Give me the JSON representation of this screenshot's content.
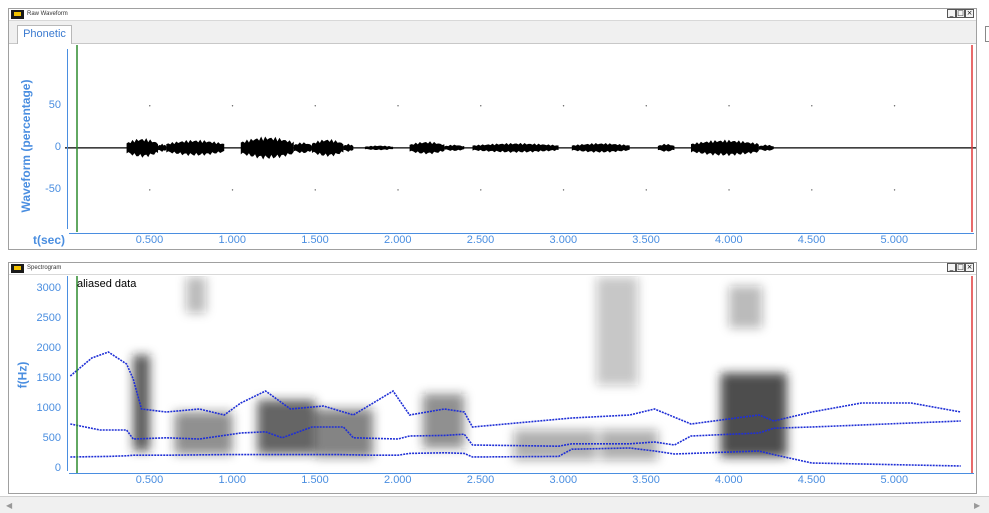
{
  "waveform": {
    "window_title": "Raw Waveform",
    "tab_label": "Phonetic",
    "y_axis_title": "Waveform (percentage)",
    "y_ticks": [
      "50",
      "0",
      "-50"
    ],
    "x_unit_label": "t(sec)",
    "x_ticks": [
      "0.500",
      "1.000",
      "1.500",
      "2.000",
      "2.500",
      "3.000",
      "3.500",
      "4.000",
      "4.500",
      "5.000"
    ],
    "segments": [
      {
        "start": 0.36,
        "end": 0.55,
        "amp": 12
      },
      {
        "start": 0.55,
        "end": 0.6,
        "amp": 5
      },
      {
        "start": 0.6,
        "end": 0.95,
        "amp": 10
      },
      {
        "start": 1.05,
        "end": 1.37,
        "amp": 14
      },
      {
        "start": 1.37,
        "end": 1.48,
        "amp": 7
      },
      {
        "start": 1.48,
        "end": 1.67,
        "amp": 11
      },
      {
        "start": 1.67,
        "end": 1.73,
        "amp": 5
      },
      {
        "start": 1.8,
        "end": 1.97,
        "amp": 3
      },
      {
        "start": 2.07,
        "end": 2.28,
        "amp": 8
      },
      {
        "start": 2.28,
        "end": 2.4,
        "amp": 4
      },
      {
        "start": 2.45,
        "end": 2.97,
        "amp": 6
      },
      {
        "start": 3.05,
        "end": 3.4,
        "amp": 6
      },
      {
        "start": 3.57,
        "end": 3.67,
        "amp": 5
      },
      {
        "start": 3.77,
        "end": 4.18,
        "amp": 10
      },
      {
        "start": 4.18,
        "end": 4.27,
        "amp": 4
      }
    ]
  },
  "spectrogram": {
    "window_title": "Spectrogram",
    "y_axis_title": "f(Hz)",
    "y_ticks": [
      "3000",
      "2500",
      "2000",
      "1500",
      "1000",
      "500",
      "0"
    ],
    "annotation": "aliased data",
    "x_ticks": [
      "0.500",
      "1.000",
      "1.500",
      "2.000",
      "2.500",
      "3.000",
      "3.500",
      "4.000",
      "4.500",
      "5.000"
    ],
    "formant_color": "#1f2fd6",
    "f1": [
      [
        0.02,
        200
      ],
      [
        0.25,
        210
      ],
      [
        0.36,
        220
      ],
      [
        0.4,
        230
      ],
      [
        0.6,
        230
      ],
      [
        0.95,
        240
      ],
      [
        1.05,
        240
      ],
      [
        1.3,
        240
      ],
      [
        1.65,
        240
      ],
      [
        1.85,
        230
      ],
      [
        2.0,
        230
      ],
      [
        2.07,
        260
      ],
      [
        2.28,
        270
      ],
      [
        2.4,
        260
      ],
      [
        2.45,
        200
      ],
      [
        2.97,
        210
      ],
      [
        3.05,
        330
      ],
      [
        3.4,
        350
      ],
      [
        3.55,
        300
      ],
      [
        3.67,
        250
      ],
      [
        3.77,
        260
      ],
      [
        4.18,
        300
      ],
      [
        4.27,
        240
      ],
      [
        4.5,
        100
      ],
      [
        5.4,
        50
      ]
    ],
    "f2": [
      [
        0.02,
        750
      ],
      [
        0.2,
        650
      ],
      [
        0.36,
        650
      ],
      [
        0.4,
        500
      ],
      [
        0.6,
        520
      ],
      [
        0.8,
        500
      ],
      [
        1.05,
        600
      ],
      [
        1.2,
        620
      ],
      [
        1.3,
        520
      ],
      [
        1.48,
        700
      ],
      [
        1.67,
        700
      ],
      [
        1.73,
        520
      ],
      [
        2.0,
        500
      ],
      [
        2.07,
        550
      ],
      [
        2.28,
        560
      ],
      [
        2.4,
        580
      ],
      [
        2.45,
        400
      ],
      [
        2.97,
        380
      ],
      [
        3.05,
        420
      ],
      [
        3.4,
        420
      ],
      [
        3.55,
        450
      ],
      [
        3.67,
        400
      ],
      [
        3.77,
        550
      ],
      [
        4.18,
        600
      ],
      [
        4.27,
        680
      ],
      [
        4.5,
        700
      ],
      [
        5.4,
        800
      ]
    ],
    "f3": [
      [
        0.02,
        1550
      ],
      [
        0.15,
        1850
      ],
      [
        0.25,
        1950
      ],
      [
        0.36,
        1750
      ],
      [
        0.4,
        1500
      ],
      [
        0.45,
        1000
      ],
      [
        0.6,
        950
      ],
      [
        0.8,
        1000
      ],
      [
        0.95,
        900
      ],
      [
        1.05,
        1100
      ],
      [
        1.2,
        1300
      ],
      [
        1.35,
        1000
      ],
      [
        1.55,
        1050
      ],
      [
        1.73,
        900
      ],
      [
        1.97,
        1300
      ],
      [
        2.07,
        900
      ],
      [
        2.28,
        1000
      ],
      [
        2.4,
        950
      ],
      [
        2.45,
        700
      ],
      [
        3.05,
        850
      ],
      [
        3.4,
        900
      ],
      [
        3.55,
        1000
      ],
      [
        3.77,
        750
      ],
      [
        4.18,
        900
      ],
      [
        4.27,
        800
      ],
      [
        4.5,
        950
      ],
      [
        4.8,
        1100
      ],
      [
        5.1,
        1100
      ],
      [
        5.4,
        950
      ]
    ],
    "dark_regions": [
      {
        "t": 0.4,
        "w": 0.1,
        "f": 1100,
        "h": 1600,
        "o": 0.75
      },
      {
        "t": 0.65,
        "w": 0.35,
        "f": 600,
        "h": 700,
        "o": 0.5
      },
      {
        "t": 1.15,
        "w": 0.35,
        "f": 700,
        "h": 900,
        "o": 0.7
      },
      {
        "t": 1.5,
        "w": 0.35,
        "f": 600,
        "h": 800,
        "o": 0.55
      },
      {
        "t": 2.15,
        "w": 0.25,
        "f": 800,
        "h": 900,
        "o": 0.5
      },
      {
        "t": 2.7,
        "w": 0.5,
        "f": 400,
        "h": 500,
        "o": 0.35
      },
      {
        "t": 3.22,
        "w": 0.35,
        "f": 400,
        "h": 500,
        "o": 0.35
      },
      {
        "t": 3.95,
        "w": 0.4,
        "f": 900,
        "h": 1400,
        "o": 0.8
      },
      {
        "t": 0.72,
        "w": 0.12,
        "f": 2900,
        "h": 600,
        "o": 0.3
      },
      {
        "t": 3.2,
        "w": 0.25,
        "f": 2300,
        "h": 1800,
        "o": 0.25
      },
      {
        "t": 4.0,
        "w": 0.2,
        "f": 2700,
        "h": 700,
        "o": 0.3
      }
    ]
  },
  "colors": {
    "axis_label": "#4a8ee0",
    "start_marker": "#2e8b2e",
    "end_marker": "#e03a3a"
  }
}
